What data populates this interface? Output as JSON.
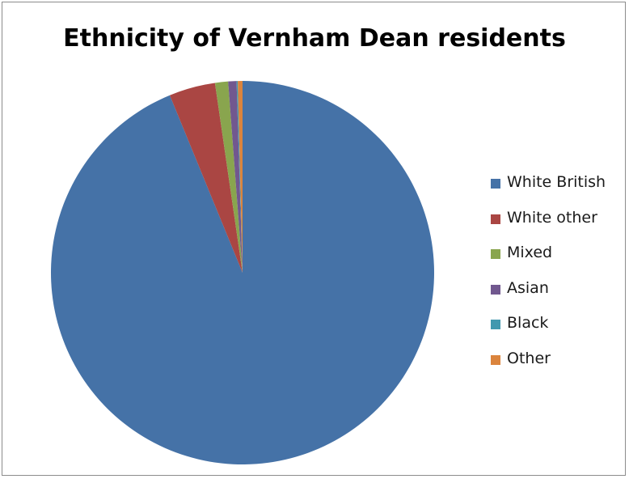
{
  "chart_data": {
    "type": "pie",
    "title": "Ethnicity of Vernham Dean residents",
    "categories": [
      "White British",
      "White other",
      "Mixed",
      "Asian",
      "Black",
      "Other"
    ],
    "values": [
      93.8,
      3.9,
      1.1,
      0.7,
      0.1,
      0.4
    ],
    "colors": [
      "#4572A7",
      "#AA4643",
      "#89A54E",
      "#71588F",
      "#4198AF",
      "#DB843D"
    ],
    "legend": "right",
    "start_angle": "top, clockwise"
  }
}
